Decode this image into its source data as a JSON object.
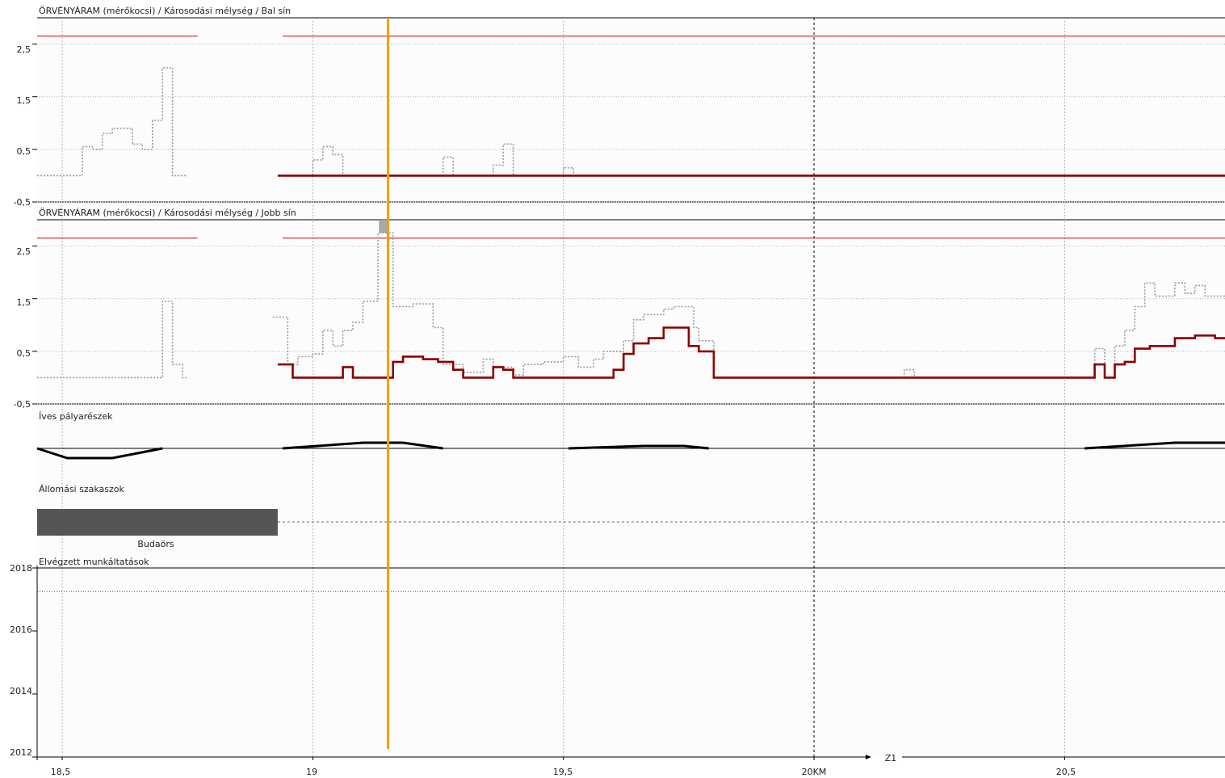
{
  "colors": {
    "threshold": "#d40000",
    "measured": "#8b0000",
    "raw": "#9a9a9a",
    "cursor": "#f5a000",
    "station": "#555555",
    "curve": "#000000",
    "grid": "#b4b4b4"
  },
  "x_axis": {
    "ticks": [
      "18,5",
      "19",
      "19,5",
      "20KM",
      "20,5"
    ],
    "tick_values": [
      18.5,
      19,
      19.5,
      20,
      20.5
    ],
    "range": [
      18.45,
      20.82
    ],
    "marker": "Z1",
    "marker_at": 20.14
  },
  "cursor_km": 19.15,
  "chart_data": [
    {
      "type": "line",
      "title": "ÖRVÉNYÁRAM (mérőkocsi) / Károsodási mélység / Bal sín",
      "ytick_labels": [
        "2,5",
        "1,5",
        "0,5",
        "-0,5"
      ],
      "ytick_values": [
        2.5,
        1.5,
        0.5,
        -0.5
      ],
      "ylim": [
        -0.5,
        3.0
      ],
      "threshold": 2.65,
      "segments": [
        [
          18.45,
          18.77
        ],
        [
          18.94,
          20.82
        ]
      ],
      "series": [
        {
          "kind": "raw",
          "steps": [
            [
              18.45,
              0.0
            ],
            [
              18.54,
              0.55
            ],
            [
              18.56,
              0.5
            ],
            [
              18.58,
              0.8
            ],
            [
              18.6,
              0.9
            ],
            [
              18.64,
              0.6
            ],
            [
              18.66,
              0.5
            ],
            [
              18.68,
              1.05
            ],
            [
              18.7,
              2.05
            ],
            [
              18.72,
              0.0
            ],
            [
              18.75,
              0.0
            ]
          ]
        },
        {
          "kind": "raw",
          "steps": [
            [
              18.93,
              0.0
            ],
            [
              19.0,
              0.3
            ],
            [
              19.02,
              0.55
            ],
            [
              19.04,
              0.4
            ],
            [
              19.06,
              0.0
            ],
            [
              19.26,
              0.35
            ],
            [
              19.28,
              0.0
            ],
            [
              19.36,
              0.2
            ],
            [
              19.38,
              0.6
            ],
            [
              19.4,
              0.0
            ],
            [
              19.5,
              0.15
            ],
            [
              19.52,
              0.0
            ],
            [
              20.82,
              0.0
            ]
          ]
        },
        {
          "kind": "measured",
          "steps": [
            [
              18.93,
              0.0
            ],
            [
              20.82,
              0.0
            ]
          ]
        }
      ]
    },
    {
      "type": "line",
      "title": "ÖRVÉNYÁRAM (mérőkocsi) / Károsodási mélység / Jobb sín",
      "ytick_labels": [
        "2,5",
        "1,5",
        "0,5",
        "-0,5"
      ],
      "ytick_values": [
        2.5,
        1.5,
        0.5,
        -0.5
      ],
      "ylim": [
        -0.5,
        3.0
      ],
      "threshold": 2.65,
      "segments": [
        [
          18.45,
          18.77
        ],
        [
          18.94,
          20.82
        ]
      ],
      "highlight": {
        "x": 19.14,
        "y1": 2.75,
        "y2": 3.0
      },
      "series": [
        {
          "kind": "raw",
          "steps": [
            [
              18.45,
              0.0
            ],
            [
              18.7,
              1.45
            ],
            [
              18.72,
              0.25
            ],
            [
              18.74,
              0.0
            ],
            [
              18.75,
              0.0
            ]
          ]
        },
        {
          "kind": "raw",
          "steps": [
            [
              18.92,
              1.15
            ],
            [
              18.95,
              0.25
            ],
            [
              18.97,
              0.4
            ],
            [
              19.0,
              0.45
            ],
            [
              19.02,
              0.9
            ],
            [
              19.04,
              0.6
            ],
            [
              19.06,
              0.9
            ],
            [
              19.08,
              1.05
            ],
            [
              19.1,
              1.45
            ],
            [
              19.13,
              2.75
            ],
            [
              19.16,
              1.35
            ],
            [
              19.2,
              1.4
            ],
            [
              19.24,
              0.95
            ],
            [
              19.26,
              0.25
            ],
            [
              19.3,
              0.1
            ],
            [
              19.34,
              0.35
            ],
            [
              19.36,
              0.2
            ],
            [
              19.4,
              0.05
            ],
            [
              19.42,
              0.25
            ],
            [
              19.46,
              0.3
            ],
            [
              19.5,
              0.4
            ],
            [
              19.53,
              0.2
            ],
            [
              19.56,
              0.35
            ],
            [
              19.58,
              0.5
            ],
            [
              19.62,
              0.7
            ],
            [
              19.64,
              1.1
            ],
            [
              19.66,
              1.2
            ],
            [
              19.7,
              1.3
            ],
            [
              19.72,
              1.35
            ],
            [
              19.76,
              0.95
            ],
            [
              19.77,
              0.7
            ],
            [
              19.8,
              0.0
            ],
            [
              20.18,
              0.15
            ],
            [
              20.2,
              0.0
            ],
            [
              20.56,
              0.55
            ],
            [
              20.58,
              0.0
            ],
            [
              20.6,
              0.6
            ],
            [
              20.62,
              0.9
            ],
            [
              20.64,
              1.35
            ],
            [
              20.66,
              1.8
            ],
            [
              20.68,
              1.55
            ],
            [
              20.72,
              1.8
            ],
            [
              20.74,
              1.6
            ],
            [
              20.76,
              1.75
            ],
            [
              20.78,
              1.55
            ],
            [
              20.82,
              1.55
            ]
          ]
        },
        {
          "kind": "measured",
          "steps": [
            [
              18.93,
              0.25
            ],
            [
              18.96,
              0.0
            ],
            [
              19.06,
              0.2
            ],
            [
              19.08,
              0.0
            ],
            [
              19.16,
              0.3
            ],
            [
              19.18,
              0.4
            ],
            [
              19.22,
              0.35
            ],
            [
              19.25,
              0.3
            ],
            [
              19.28,
              0.15
            ],
            [
              19.3,
              0.0
            ],
            [
              19.36,
              0.2
            ],
            [
              19.38,
              0.15
            ],
            [
              19.4,
              0.0
            ],
            [
              19.6,
              0.15
            ],
            [
              19.62,
              0.45
            ],
            [
              19.64,
              0.65
            ],
            [
              19.67,
              0.75
            ],
            [
              19.7,
              0.95
            ],
            [
              19.75,
              0.6
            ],
            [
              19.77,
              0.5
            ],
            [
              19.8,
              0.0
            ],
            [
              20.56,
              0.25
            ],
            [
              20.58,
              0.0
            ],
            [
              20.6,
              0.25
            ],
            [
              20.62,
              0.3
            ],
            [
              20.64,
              0.55
            ],
            [
              20.67,
              0.6
            ],
            [
              20.72,
              0.75
            ],
            [
              20.76,
              0.8
            ],
            [
              20.8,
              0.75
            ],
            [
              20.82,
              0.75
            ]
          ]
        }
      ]
    },
    {
      "type": "area",
      "title": "Íves pályarészek",
      "curves": [
        {
          "points": [
            [
              18.45,
              0.0
            ],
            [
              18.51,
              -0.6
            ],
            [
              18.6,
              -0.6
            ],
            [
              18.7,
              0.0
            ]
          ]
        },
        {
          "points": [
            [
              18.94,
              0.0
            ],
            [
              19.1,
              0.35
            ],
            [
              19.18,
              0.35
            ],
            [
              19.26,
              0.0
            ]
          ]
        },
        {
          "points": [
            [
              19.51,
              0.0
            ],
            [
              19.66,
              0.15
            ],
            [
              19.74,
              0.15
            ],
            [
              19.79,
              0.0
            ]
          ]
        },
        {
          "points": [
            [
              20.54,
              0.0
            ],
            [
              20.72,
              0.35
            ],
            [
              20.82,
              0.35
            ]
          ]
        }
      ]
    },
    {
      "type": "bar",
      "title": "Állomási szakaszok",
      "stations": [
        {
          "name": "Budaörs",
          "start": 18.45,
          "end": 18.93
        }
      ]
    },
    {
      "type": "scatter",
      "title": "Elvégzett munkáltatások",
      "ytick_labels": [
        "2018",
        "2016",
        "2014",
        "2012"
      ],
      "ytick_values": [
        2018,
        2016,
        2014,
        2012
      ],
      "ylim": [
        2012,
        2018
      ],
      "reference": 2017.25
    }
  ]
}
